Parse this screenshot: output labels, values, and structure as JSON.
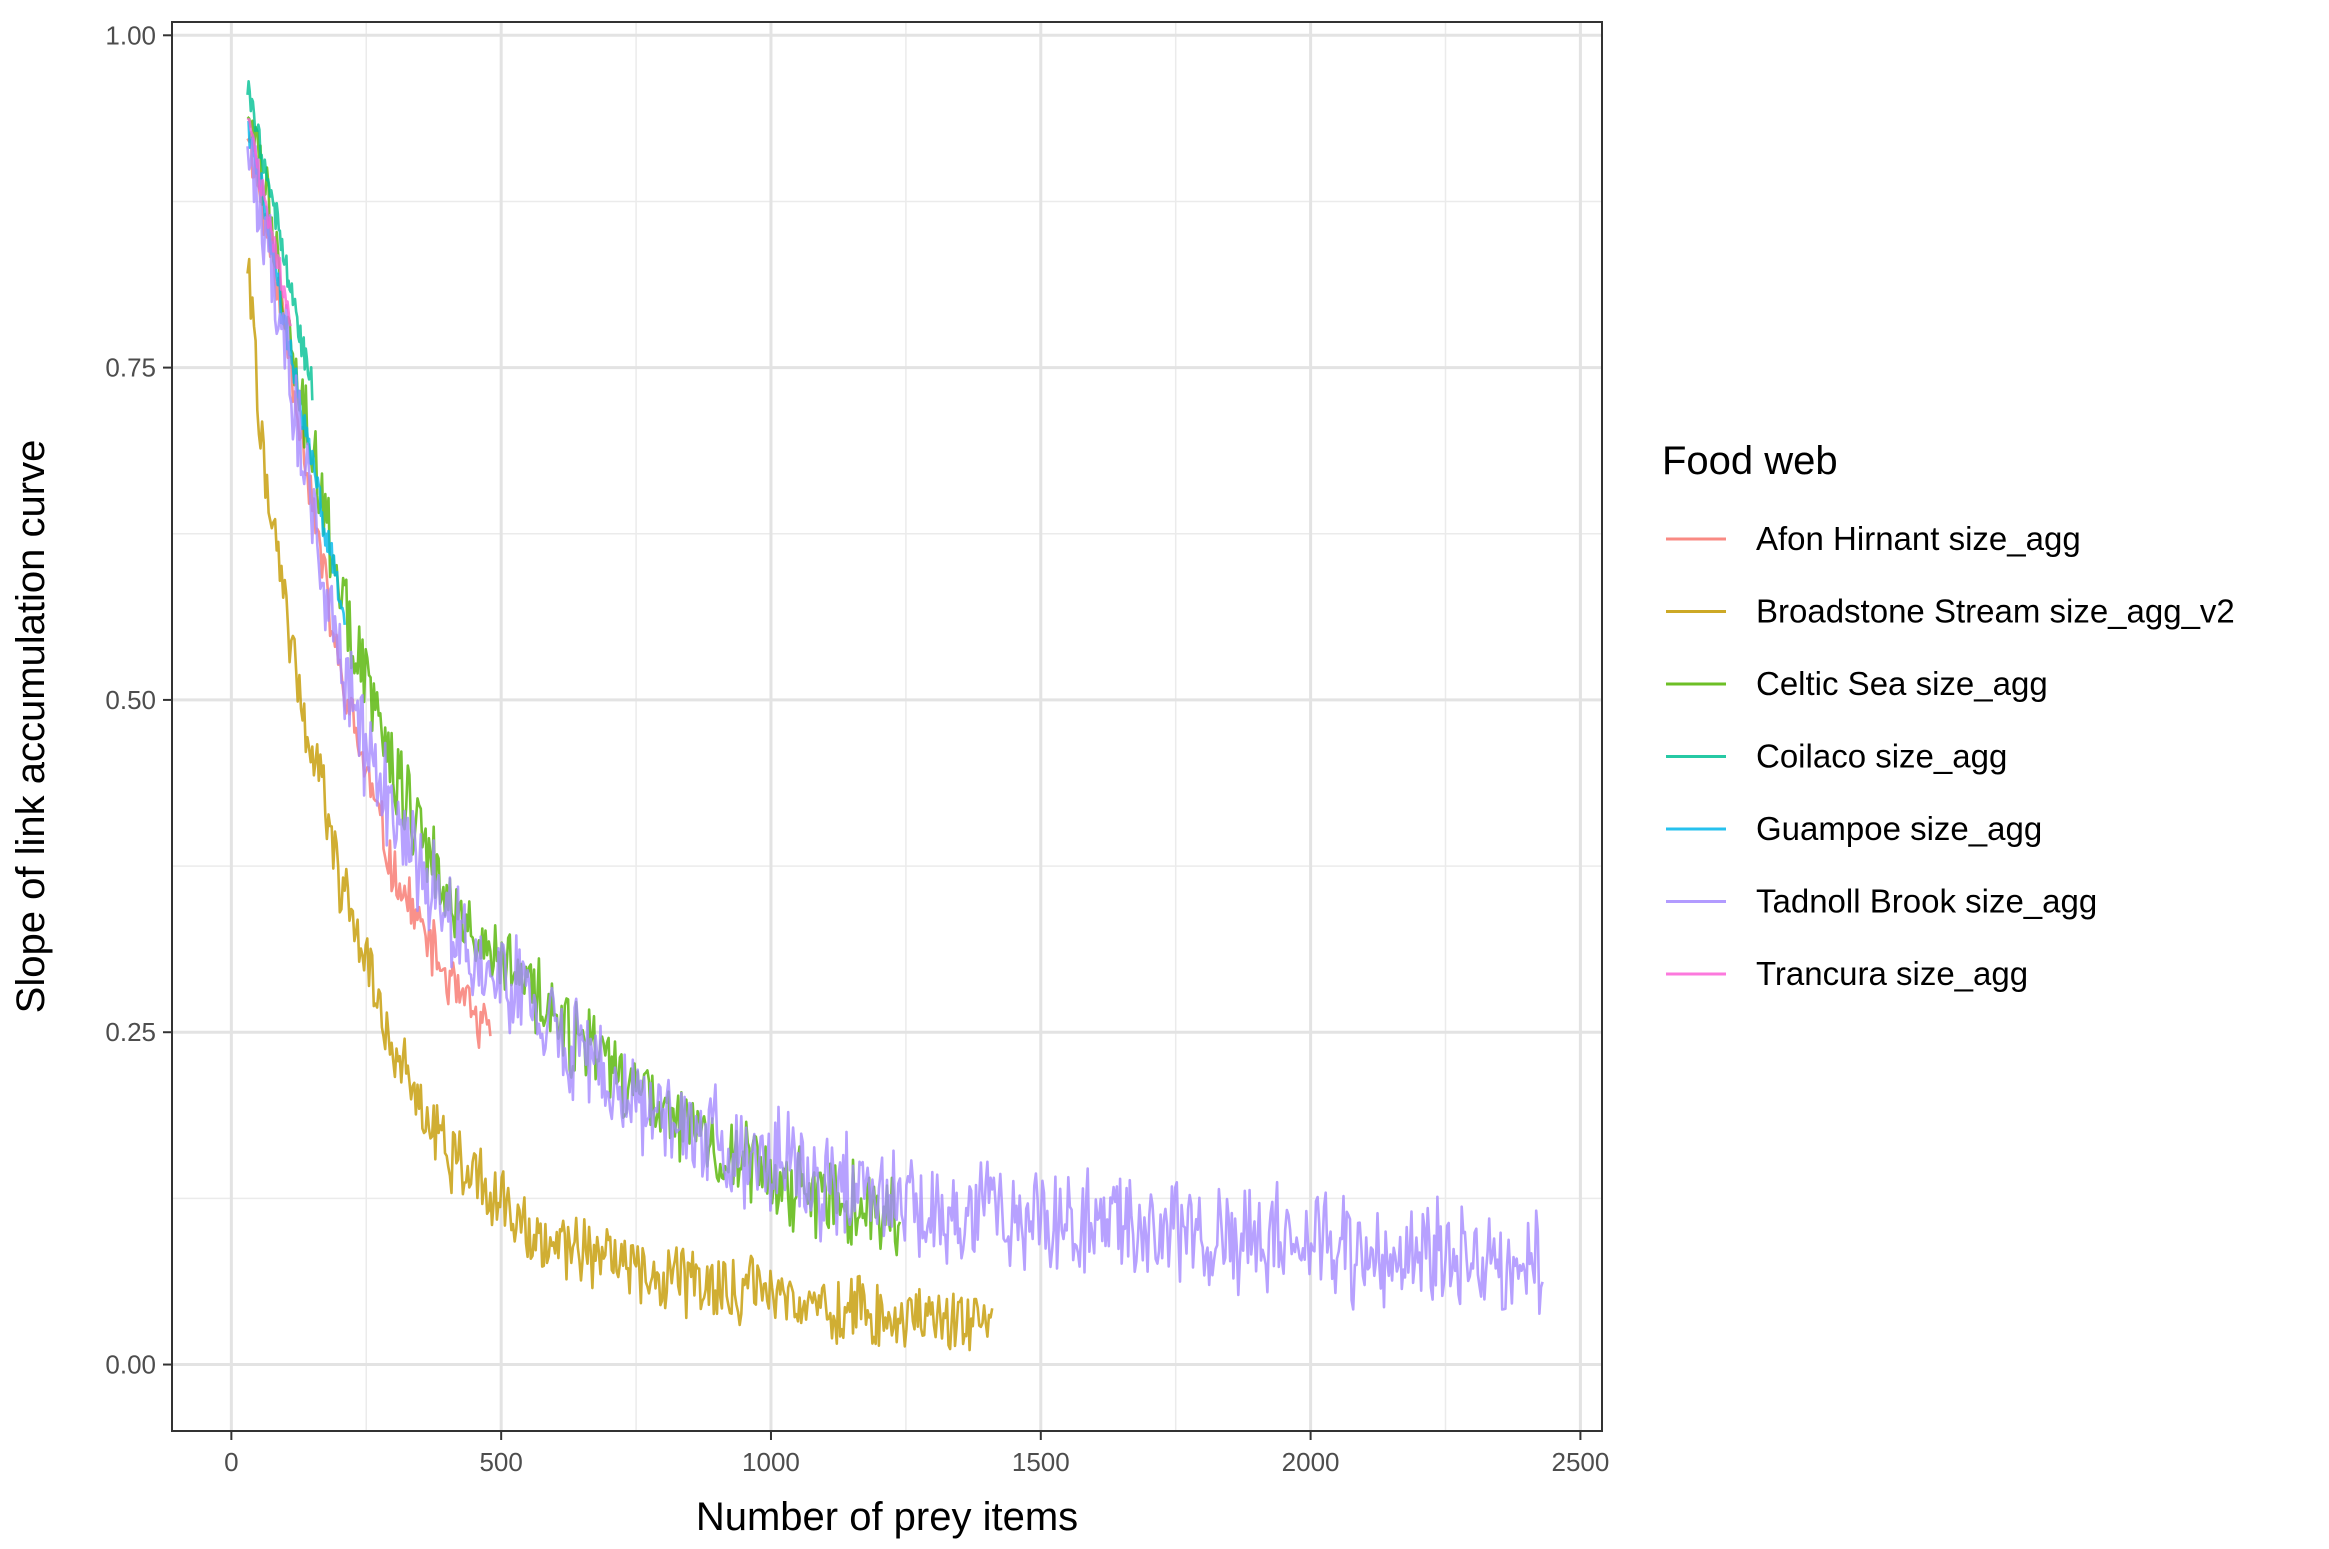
{
  "chart_data": {
    "type": "line",
    "title": "",
    "xlabel": "Number of prey items",
    "ylabel": "Slope of link accumulation curve",
    "xlim": [
      -110,
      2540
    ],
    "ylim": [
      -0.05,
      1.01
    ],
    "x_ticks": [
      0,
      500,
      1000,
      1500,
      2000,
      2500
    ],
    "x_tick_labels": [
      "0",
      "500",
      "1000",
      "1500",
      "2000",
      "2500"
    ],
    "y_ticks": [
      0,
      0.25,
      0.5,
      0.75,
      1.0
    ],
    "y_tick_labels": [
      "0.00",
      "0.25",
      "0.50",
      "0.75",
      "1.00"
    ],
    "grid": true,
    "legend": {
      "title": "Food web",
      "position": "right"
    },
    "series": [
      {
        "name": "Afon Hirnant size_agg",
        "color": "#F8766D",
        "x_start": 30,
        "x_end": 480,
        "step": 3,
        "y_at": [
          [
            30,
            0.93
          ],
          [
            100,
            0.78
          ],
          [
            200,
            0.52
          ],
          [
            300,
            0.37
          ],
          [
            400,
            0.29
          ],
          [
            480,
            0.245
          ]
        ],
        "noise": 0.018,
        "seed": 11
      },
      {
        "name": "Broadstone Stream size_agg_v2",
        "color": "#C49A00",
        "x_start": 30,
        "x_end": 1410,
        "step": 3,
        "y_at": [
          [
            30,
            0.83
          ],
          [
            60,
            0.68
          ],
          [
            100,
            0.57
          ],
          [
            150,
            0.46
          ],
          [
            200,
            0.37
          ],
          [
            300,
            0.24
          ],
          [
            400,
            0.16
          ],
          [
            500,
            0.12
          ],
          [
            600,
            0.095
          ],
          [
            800,
            0.065
          ],
          [
            1000,
            0.05
          ],
          [
            1200,
            0.04
          ],
          [
            1410,
            0.03
          ]
        ],
        "noise": 0.022,
        "seed": 22
      },
      {
        "name": "Celtic Sea size_agg",
        "color": "#53B400",
        "x_start": 30,
        "x_end": 1240,
        "step": 3,
        "y_at": [
          [
            30,
            0.95
          ],
          [
            100,
            0.8
          ],
          [
            200,
            0.58
          ],
          [
            300,
            0.45
          ],
          [
            400,
            0.36
          ],
          [
            500,
            0.3
          ],
          [
            700,
            0.22
          ],
          [
            900,
            0.16
          ],
          [
            1100,
            0.125
          ],
          [
            1240,
            0.11
          ]
        ],
        "noise": 0.028,
        "seed": 33
      },
      {
        "name": "Coilaco size_agg",
        "color": "#00C094",
        "x_start": 30,
        "x_end": 150,
        "step": 2,
        "y_at": [
          [
            30,
            0.96
          ],
          [
            80,
            0.87
          ],
          [
            120,
            0.79
          ],
          [
            150,
            0.73
          ]
        ],
        "noise": 0.012,
        "seed": 44
      },
      {
        "name": "Guampoe size_agg",
        "color": "#00B6EB",
        "x_start": 30,
        "x_end": 210,
        "step": 2,
        "y_at": [
          [
            30,
            0.94
          ],
          [
            100,
            0.78
          ],
          [
            160,
            0.66
          ],
          [
            210,
            0.56
          ]
        ],
        "noise": 0.014,
        "seed": 55
      },
      {
        "name": "Tadnoll Brook size_agg",
        "color": "#A58AFF",
        "x_start": 30,
        "x_end": 2430,
        "step": 3,
        "y_at": [
          [
            30,
            0.93
          ],
          [
            100,
            0.76
          ],
          [
            200,
            0.53
          ],
          [
            300,
            0.41
          ],
          [
            400,
            0.34
          ],
          [
            500,
            0.29
          ],
          [
            700,
            0.21
          ],
          [
            900,
            0.165
          ],
          [
            1100,
            0.135
          ],
          [
            1300,
            0.12
          ],
          [
            1600,
            0.105
          ],
          [
            2000,
            0.09
          ],
          [
            2430,
            0.075
          ]
        ],
        "noise": 0.035,
        "seed": 66
      },
      {
        "name": "Trancura size_agg",
        "color": "#FB61D7",
        "x_start": 30,
        "x_end": 110,
        "step": 2,
        "y_at": [
          [
            30,
            0.94
          ],
          [
            70,
            0.86
          ],
          [
            110,
            0.78
          ]
        ],
        "noise": 0.01,
        "seed": 77
      }
    ]
  }
}
